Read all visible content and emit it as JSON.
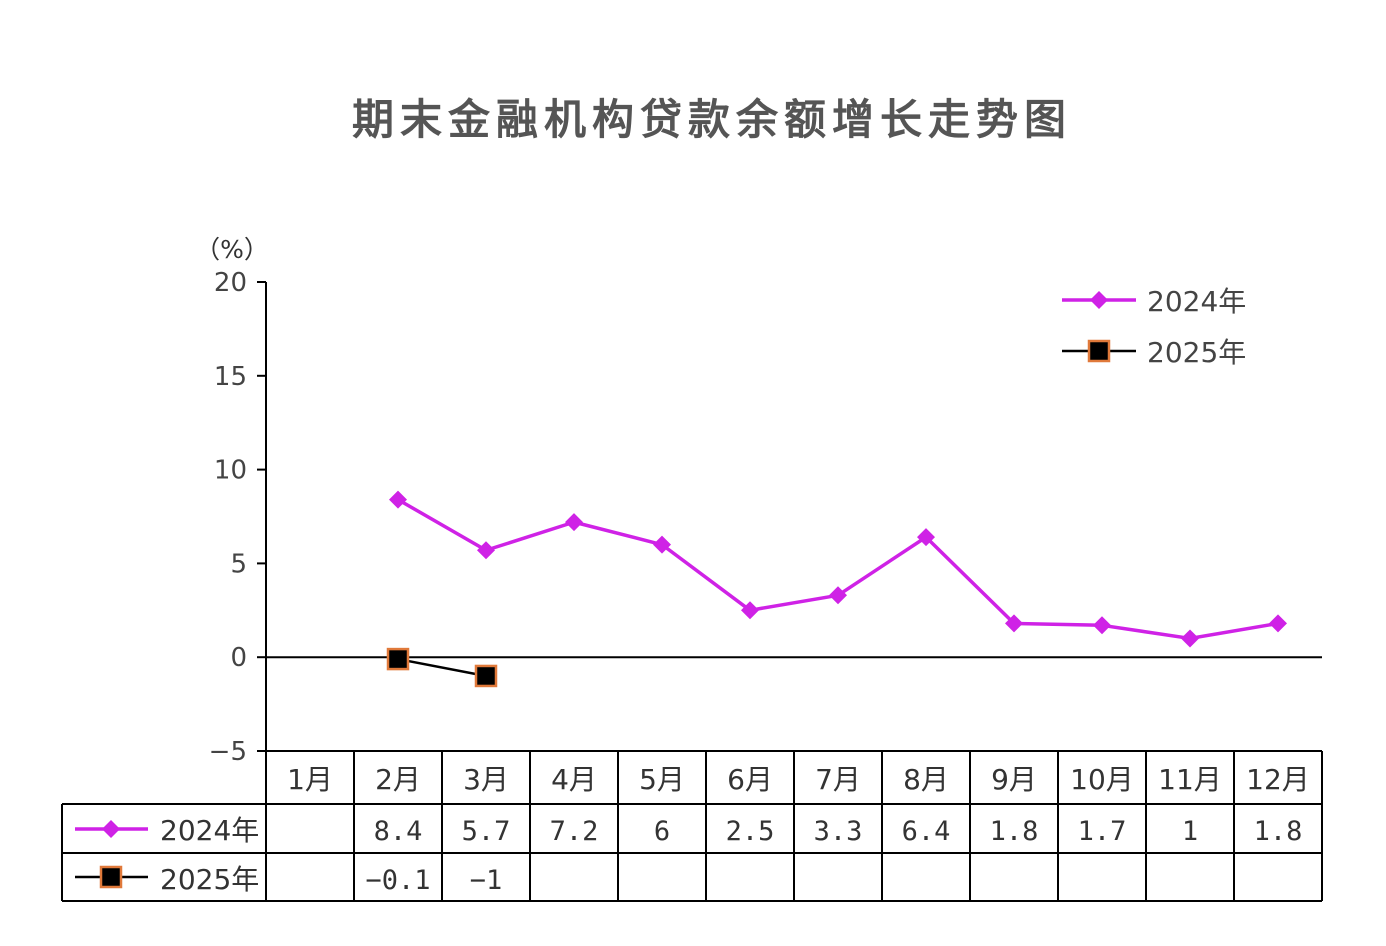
{
  "colors": {
    "background": "#ffffff",
    "title": "#555555",
    "text": "#333333",
    "axis": "#000000"
  },
  "chart_data": {
    "type": "line",
    "title": "期末金融机构贷款余额增长走势图",
    "xlabel": "",
    "ylabel": "（%）",
    "ylim": [
      -5,
      20
    ],
    "yticks": [
      20,
      15,
      10,
      5,
      0,
      -5
    ],
    "ytick_labels": [
      "20",
      "15",
      "10",
      "5",
      "0",
      "−5"
    ],
    "grid": false,
    "legend": "top-right",
    "categories": [
      "1月",
      "2月",
      "3月",
      "4月",
      "5月",
      "6月",
      "7月",
      "8月",
      "9月",
      "10月",
      "11月",
      "12月"
    ],
    "series": [
      {
        "name": "2024年",
        "marker": "diamond",
        "color": "#cf22e6",
        "values": [
          null,
          8.4,
          5.7,
          7.2,
          6,
          2.5,
          3.3,
          6.4,
          1.8,
          1.7,
          1,
          1.8
        ],
        "table_cells": [
          "",
          "8.4",
          "5.7",
          "7.2",
          "6",
          "2.5",
          "3.3",
          "6.4",
          "1.8",
          "1.7",
          "1",
          "1.8"
        ]
      },
      {
        "name": "2025年",
        "marker": "square",
        "color": "#000000",
        "marker_edge_color": "#e0793a",
        "values": [
          null,
          -0.1,
          -1,
          null,
          null,
          null,
          null,
          null,
          null,
          null,
          null,
          null
        ],
        "table_cells": [
          "",
          "−0.1",
          "−1",
          "",
          "",
          "",
          "",
          "",
          "",
          "",
          "",
          ""
        ]
      }
    ]
  }
}
